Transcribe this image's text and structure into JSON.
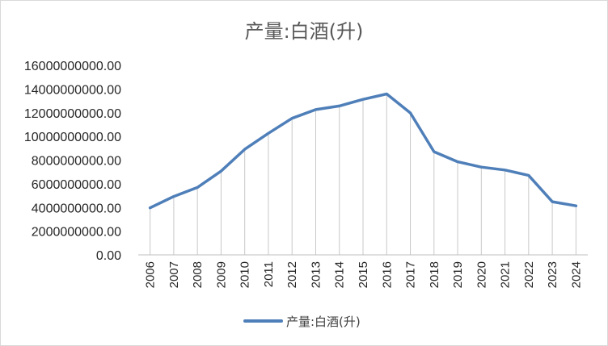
{
  "chart_data": {
    "type": "line",
    "title": "产量:白酒(升)",
    "x": [
      "2006",
      "2007",
      "2008",
      "2009",
      "2010",
      "2011",
      "2012",
      "2013",
      "2014",
      "2015",
      "2016",
      "2017",
      "2018",
      "2019",
      "2020",
      "2021",
      "2022",
      "2023",
      "2024"
    ],
    "series": [
      {
        "name": "产量:白酒(升)",
        "color": "#4f7fb9",
        "values": [
          3970000000,
          4930000000,
          5690000000,
          7070000000,
          8910000000,
          10260000000,
          11530000000,
          12260000000,
          12570000000,
          13130000000,
          13580000000,
          11980000000,
          8710000000,
          7860000000,
          7410000000,
          7160000000,
          6710000000,
          4490000000,
          4140000000
        ]
      }
    ],
    "y_ticks": [
      "0.00",
      "2000000000.00",
      "4000000000.00",
      "6000000000.00",
      "8000000000.00",
      "10000000000.00",
      "12000000000.00",
      "14000000000.00",
      "16000000000.00"
    ],
    "ylim": [
      0,
      16000000000
    ],
    "grid": "vertical drop lines",
    "legend": "bottom"
  }
}
